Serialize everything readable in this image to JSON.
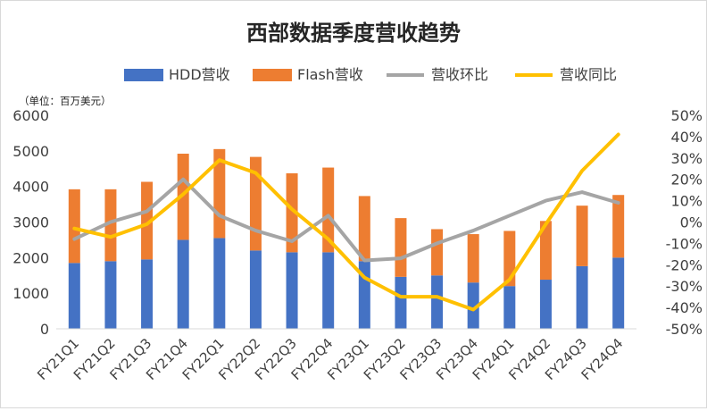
{
  "chart_data": {
    "type": "bar",
    "title": "西部数据季度营收趋势",
    "unit_note": "（单位：百万美元）",
    "categories": [
      "FY21Q1",
      "FY21Q2",
      "FY21Q3",
      "FY21Q4",
      "FY22Q1",
      "FY22Q2",
      "FY22Q3",
      "FY22Q4",
      "FY23Q1",
      "FY23Q2",
      "FY23Q3",
      "FY23Q4",
      "FY24Q1",
      "FY24Q2",
      "FY24Q3",
      "FY24Q4"
    ],
    "bar_series": [
      {
        "name": "HDD营收",
        "color": "#4472c4",
        "values": [
          1850,
          1900,
          1950,
          2500,
          2550,
          2200,
          2150,
          2150,
          1900,
          1460,
          1500,
          1300,
          1200,
          1380,
          1760,
          2000
        ]
      },
      {
        "name": "Flash营收",
        "color": "#ed7d31",
        "values": [
          2070,
          2020,
          2180,
          2420,
          2500,
          2630,
          2220,
          2380,
          1830,
          1650,
          1300,
          1360,
          1550,
          1650,
          1700,
          1760
        ]
      }
    ],
    "line_series": [
      {
        "name": "营收环比",
        "color": "#a5a5a5",
        "values": [
          -8,
          0,
          5,
          20,
          3,
          -4,
          -9,
          3,
          -18,
          -17,
          -10,
          -4,
          3,
          10,
          14,
          9
        ]
      },
      {
        "name": "营收同比",
        "color": "#ffc000",
        "values": [
          -3,
          -7,
          -1,
          13,
          29,
          23,
          6,
          -8,
          -26,
          -35,
          -35,
          -41,
          -27,
          -1,
          24,
          41
        ]
      }
    ],
    "y_left": {
      "min": 0,
      "max": 6000,
      "ticks": [
        "0",
        "1000",
        "2000",
        "3000",
        "4000",
        "5000",
        "6000"
      ]
    },
    "y_right": {
      "min": -50,
      "max": 50,
      "ticks": [
        "-50%",
        "-40%",
        "-30%",
        "-20%",
        "-10%",
        "0%",
        "10%",
        "20%",
        "30%",
        "40%",
        "50%"
      ]
    },
    "legend_position": "top",
    "grid": false
  }
}
